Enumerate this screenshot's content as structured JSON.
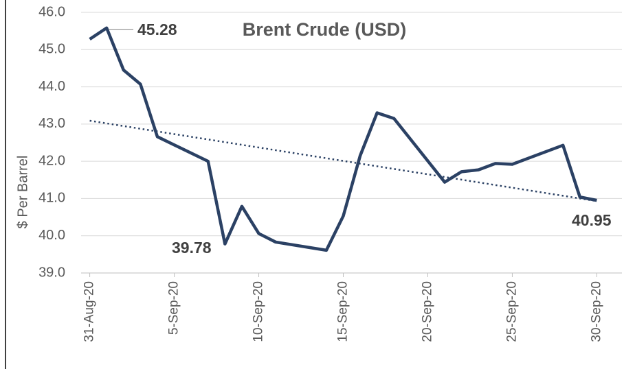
{
  "chart_data": {
    "type": "line",
    "title": "Brent Crude  (USD)",
    "ylabel": "$ Per Barrel",
    "x": [
      "31-Aug-20",
      "1-Sep-20",
      "2-Sep-20",
      "3-Sep-20",
      "4-Sep-20",
      "7-Sep-20",
      "8-Sep-20",
      "9-Sep-20",
      "10-Sep-20",
      "11-Sep-20",
      "14-Sep-20",
      "15-Sep-20",
      "16-Sep-20",
      "17-Sep-20",
      "18-Sep-20",
      "21-Sep-20",
      "22-Sep-20",
      "23-Sep-20",
      "24-Sep-20",
      "25-Sep-20",
      "28-Sep-20",
      "29-Sep-20",
      "30-Sep-20"
    ],
    "series": [
      {
        "name": "Brent Crude",
        "color": "#2b4164",
        "values": [
          45.28,
          45.58,
          44.45,
          44.07,
          42.66,
          42.0,
          39.78,
          40.79,
          40.06,
          39.83,
          39.61,
          40.53,
          42.15,
          43.3,
          43.15,
          41.44,
          41.72,
          41.77,
          41.94,
          41.92,
          42.43,
          41.04,
          40.95
        ]
      }
    ],
    "trendline": {
      "color": "#2b4164",
      "x": [
        "31-Aug-20",
        "30-Sep-20"
      ],
      "values": [
        43.09,
        40.93
      ]
    },
    "annotations": [
      {
        "x": "31-Aug-20",
        "value": 45.28
      },
      {
        "x": "8-Sep-20",
        "value": 39.78
      },
      {
        "x": "30-Sep-20",
        "value": 40.95
      }
    ],
    "xlim": [
      "30-Aug-20",
      "1-Oct-20"
    ],
    "xticks": [
      "31-Aug-20",
      "5-Sep-20",
      "10-Sep-20",
      "15-Sep-20",
      "20-Sep-20",
      "25-Sep-20",
      "30-Sep-20"
    ],
    "ylim": [
      39.0,
      46.0
    ],
    "yticks": [
      {
        "value": 39,
        "label": "39.0"
      },
      {
        "value": 40,
        "label": "40.0"
      },
      {
        "value": 41,
        "label": "41.0"
      },
      {
        "value": 42,
        "label": "42.0"
      },
      {
        "value": 43,
        "label": "43.0"
      },
      {
        "value": 44,
        "label": "44.0"
      },
      {
        "value": 45,
        "label": "45.0"
      },
      {
        "value": 46,
        "label": "46.0"
      }
    ],
    "grid": true
  }
}
